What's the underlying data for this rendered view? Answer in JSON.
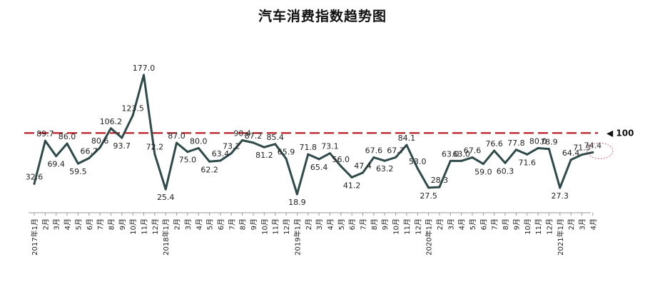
{
  "chart_data": {
    "type": "line",
    "title": "汽车消费指数趋势图",
    "xlabel": "",
    "ylabel": "",
    "ylim": [
      0,
      200
    ],
    "grid": false,
    "legend": "none",
    "reference_line": {
      "value": 100,
      "label": "◀ 100",
      "color": "#b5121b"
    },
    "line_color": "#2f4a4a",
    "highlight_color": "#d4687a",
    "categories": [
      "2017年1月",
      "2月",
      "3月",
      "4月",
      "5月",
      "6月",
      "7月",
      "8月",
      "9月",
      "10月",
      "11月",
      "12月",
      "2018年1月",
      "2月",
      "3月",
      "4月",
      "5月",
      "6月",
      "7月",
      "8月",
      "9月",
      "10月",
      "11月",
      "12月",
      "2019年1月",
      "2月",
      "3月",
      "4月",
      "5月",
      "6月",
      "7月",
      "8月",
      "9月",
      "10月",
      "11月",
      "12月",
      "2020年1月",
      "2月",
      "3月",
      "4月",
      "5月",
      "6月",
      "7月",
      "8月",
      "9月",
      "10月",
      "11月",
      "12月",
      "2021年1月",
      "2月",
      "3月",
      "4月"
    ],
    "series": [
      {
        "values": [
          32.6,
          89.7,
          69.4,
          86.0,
          59.5,
          66.7,
          80.6,
          106.2,
          93.7,
          123.5,
          177.0,
          72.2,
          25.4,
          87.0,
          75.0,
          80.0,
          62.2,
          63.4,
          73.2,
          90.4,
          87.2,
          81.2,
          85.4,
          65.9,
          18.9,
          71.8,
          65.4,
          73.1,
          56.0,
          41.2,
          47.4,
          67.6,
          63.2,
          67.7,
          84.1,
          53.0,
          27.5,
          28.3,
          63.0,
          63.0,
          67.6,
          59.0,
          76.6,
          60.3,
          77.8,
          71.6,
          80.0,
          78.9,
          27.3,
          64.4,
          71.3,
          74.4
        ],
        "labels": [
          "32.6",
          "89.7",
          "69.4",
          "86.0",
          "59.5",
          "66.7",
          "80.6",
          "106.2",
          "93.7",
          "123.5",
          "177.0",
          "72.2",
          "25.4",
          "87.0",
          "75.0",
          "80.0",
          "62.2",
          "63.4",
          "73.2",
          "90.4",
          "87.2",
          "81.2",
          "85.4",
          "65.9",
          "18.9",
          "71.8",
          "65.4",
          "73.1",
          "56.0",
          "41.2",
          "47.4",
          "67.6",
          "63.2",
          "67.7",
          "84.1",
          "53.0",
          "27.5",
          "28.3",
          "63.0",
          "63.0",
          "67.6",
          "59.0",
          "76.6",
          "60.3",
          "77.8",
          "71.6",
          "80.0",
          "78.9",
          "27.3",
          "64.4",
          "71.3",
          "74.4"
        ]
      }
    ]
  }
}
